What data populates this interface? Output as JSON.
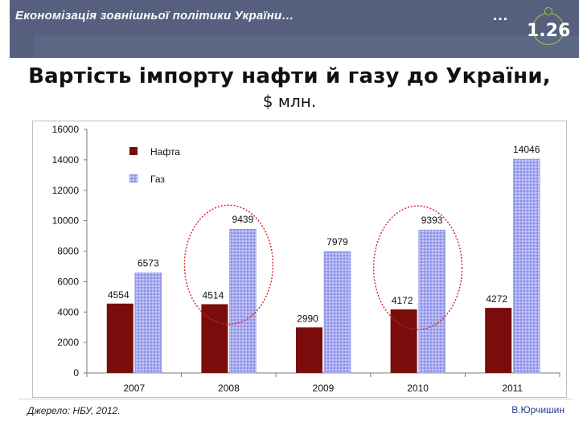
{
  "header": {
    "deco_title": "Економізація зовнішньої політики України…",
    "ellipsis": "…",
    "slide_number": "1.26"
  },
  "slide": {
    "title": "Вартість імпорту нафти й газу до України,",
    "subtitle": "$ млн."
  },
  "footer": {
    "source": "Джерело: НБУ, 2012.",
    "author": "В.Юрчишин"
  },
  "colors": {
    "header": "#56607e",
    "oil": "#7a0c0c",
    "gas": "#a6aaf0",
    "highlight_ellipse": "#d81f2a",
    "badge_ring": "#a8c63c"
  },
  "chart_data": {
    "type": "bar",
    "categories": [
      "2007",
      "2008",
      "2009",
      "2010",
      "2011"
    ],
    "series": [
      {
        "name": "Нафта",
        "values": [
          4554,
          4514,
          2990,
          4172,
          4272
        ]
      },
      {
        "name": "Газ",
        "values": [
          6573,
          9439,
          7979,
          9393,
          14046
        ]
      }
    ],
    "ylim": [
      0,
      16000
    ],
    "yticks": [
      "0",
      "2000",
      "4000",
      "6000",
      "8000",
      "10000",
      "12000",
      "14000",
      "16000"
    ],
    "grid": false,
    "legend_position": "top-left",
    "highlighted_categories": [
      "2008",
      "2010"
    ]
  }
}
